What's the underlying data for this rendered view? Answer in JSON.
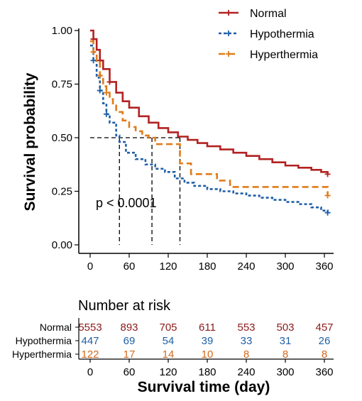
{
  "chart_data": {
    "type": "line",
    "subtype": "kaplan-meier",
    "ylabel": "Survival probability",
    "xlabel": "Survival time (day)",
    "xlim": [
      0,
      360
    ],
    "ylim": [
      0,
      1
    ],
    "x_ticks": [
      "0",
      "60",
      "120",
      "180",
      "240",
      "300",
      "360"
    ],
    "y_ticks": [
      "0.00",
      "0.25",
      "0.50",
      "0.75",
      "1.00"
    ],
    "annotation": "p < 0.0001",
    "median_reference": {
      "y": 0.5,
      "medians_x": [
        45,
        95,
        138
      ]
    },
    "legend_position": "top-right",
    "series": [
      {
        "name": "Normal",
        "color": "#B22222",
        "line_style": "solid",
        "points": [
          [
            0,
            1.0
          ],
          [
            5,
            0.96
          ],
          [
            10,
            0.91
          ],
          [
            15,
            0.86
          ],
          [
            20,
            0.82
          ],
          [
            30,
            0.76
          ],
          [
            40,
            0.71
          ],
          [
            50,
            0.67
          ],
          [
            60,
            0.64
          ],
          [
            75,
            0.6
          ],
          [
            90,
            0.57
          ],
          [
            105,
            0.545
          ],
          [
            120,
            0.525
          ],
          [
            135,
            0.505
          ],
          [
            150,
            0.49
          ],
          [
            165,
            0.475
          ],
          [
            180,
            0.46
          ],
          [
            200,
            0.445
          ],
          [
            220,
            0.43
          ],
          [
            240,
            0.415
          ],
          [
            260,
            0.4
          ],
          [
            280,
            0.385
          ],
          [
            300,
            0.37
          ],
          [
            320,
            0.36
          ],
          [
            340,
            0.35
          ],
          [
            355,
            0.34
          ],
          [
            365,
            0.33
          ]
        ]
      },
      {
        "name": "Hypothermia",
        "color": "#1F5FA6",
        "line_style": "dotted",
        "points": [
          [
            0,
            0.93
          ],
          [
            5,
            0.86
          ],
          [
            10,
            0.78
          ],
          [
            15,
            0.72
          ],
          [
            20,
            0.66
          ],
          [
            25,
            0.61
          ],
          [
            30,
            0.57
          ],
          [
            40,
            0.51
          ],
          [
            45,
            0.48
          ],
          [
            55,
            0.43
          ],
          [
            70,
            0.4
          ],
          [
            85,
            0.375
          ],
          [
            100,
            0.355
          ],
          [
            115,
            0.34
          ],
          [
            130,
            0.31
          ],
          [
            145,
            0.29
          ],
          [
            160,
            0.275
          ],
          [
            180,
            0.26
          ],
          [
            200,
            0.25
          ],
          [
            220,
            0.24
          ],
          [
            240,
            0.23
          ],
          [
            260,
            0.22
          ],
          [
            280,
            0.21
          ],
          [
            300,
            0.2
          ],
          [
            320,
            0.19
          ],
          [
            340,
            0.175
          ],
          [
            355,
            0.16
          ],
          [
            365,
            0.15
          ]
        ]
      },
      {
        "name": "Hyperthermia",
        "color": "#E07B1A",
        "line_style": "dashed",
        "points": [
          [
            0,
            0.95
          ],
          [
            5,
            0.9
          ],
          [
            10,
            0.86
          ],
          [
            15,
            0.79
          ],
          [
            20,
            0.74
          ],
          [
            25,
            0.71
          ],
          [
            30,
            0.68
          ],
          [
            35,
            0.65
          ],
          [
            40,
            0.62
          ],
          [
            50,
            0.58
          ],
          [
            60,
            0.55
          ],
          [
            70,
            0.53
          ],
          [
            80,
            0.51
          ],
          [
            90,
            0.5
          ],
          [
            100,
            0.5
          ],
          [
            100,
            0.47
          ],
          [
            138,
            0.47
          ],
          [
            138,
            0.38
          ],
          [
            155,
            0.38
          ],
          [
            155,
            0.33
          ],
          [
            195,
            0.33
          ],
          [
            195,
            0.3
          ],
          [
            215,
            0.3
          ],
          [
            215,
            0.27
          ],
          [
            365,
            0.27
          ],
          [
            365,
            0.23
          ]
        ]
      }
    ]
  },
  "risk_table": {
    "title": "Number at risk",
    "time_labels": [
      "0",
      "60",
      "120",
      "180",
      "240",
      "300",
      "360"
    ],
    "groups": [
      {
        "name": "Normal",
        "color": "#8B1A1A",
        "values": [
          "5553",
          "893",
          "705",
          "611",
          "553",
          "503",
          "457"
        ]
      },
      {
        "name": "Hypothermia",
        "color": "#1F5FA6",
        "values": [
          "447",
          "69",
          "54",
          "39",
          "33",
          "31",
          "26"
        ]
      },
      {
        "name": "Hyperthermia",
        "color": "#D2691E",
        "values": [
          "122",
          "17",
          "14",
          "10",
          "8",
          "8",
          "8"
        ]
      }
    ]
  }
}
